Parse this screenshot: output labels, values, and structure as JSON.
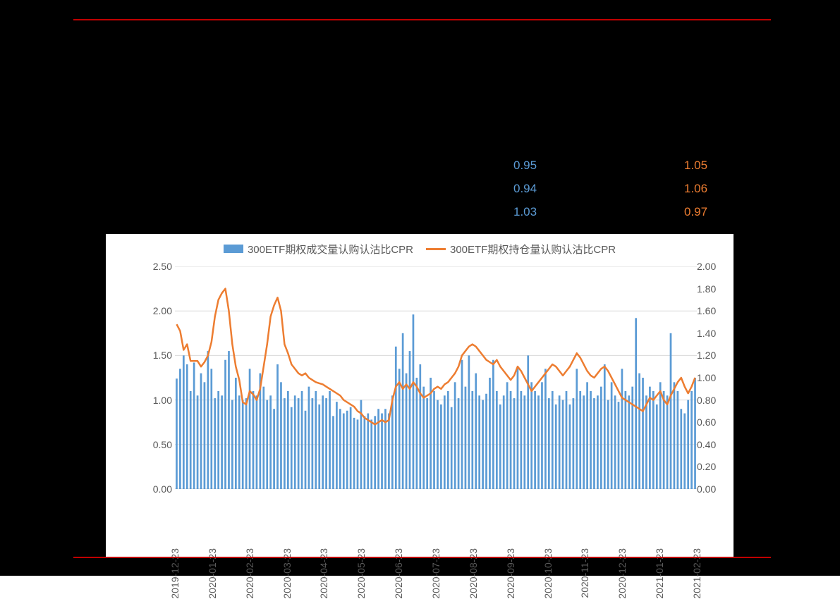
{
  "background_color": "#000000",
  "accent_rule_color": "#c00000",
  "data_rows": [
    {
      "cpr": "0.95",
      "pcr": "1.05",
      "cpr_color": "#5b9bd5",
      "pcr_color": "#ed7d31"
    },
    {
      "cpr": "0.94",
      "pcr": "1.06",
      "cpr_color": "#5b9bd5",
      "pcr_color": "#ed7d31"
    },
    {
      "cpr": "1.03",
      "pcr": "0.97",
      "cpr_color": "#5b9bd5",
      "pcr_color": "#ed7d31"
    }
  ],
  "chart": {
    "type": "bar+line",
    "background_color": "#ffffff",
    "plot_border_color": "#d9d9d9",
    "gridline_color": "#d9d9d9",
    "text_color": "#595959",
    "axis_color": "#bfbfbf",
    "font_size_legend": 15,
    "font_size_axis": 14,
    "legend": [
      {
        "label": "300ETF期权成交量认购认沽比CPR",
        "swatch": "bar",
        "color": "#5b9bd5"
      },
      {
        "label": "300ETF期权持仓量认购认沽比CPR",
        "swatch": "line",
        "color": "#ed7d31"
      }
    ],
    "x_ticks": [
      "2019-12-23",
      "2020-01-23",
      "2020-02-23",
      "2020-03-23",
      "2020-04-23",
      "2020-05-23",
      "2020-06-23",
      "2020-07-23",
      "2020-08-23",
      "2020-09-23",
      "2020-10-23",
      "2020-11-23",
      "2020-12-23",
      "2021-01-23",
      "2021-02-23"
    ],
    "left_axis": {
      "min": 0.0,
      "max": 2.5,
      "step": 0.5,
      "decimals": 2
    },
    "right_axis": {
      "min": 0.0,
      "max": 2.0,
      "step": 0.2,
      "decimals": 2
    },
    "bar": {
      "color": "#5b9bd5",
      "width_ratio": 0.55,
      "values": [
        1.24,
        1.35,
        1.5,
        1.4,
        1.1,
        1.42,
        1.05,
        1.3,
        1.2,
        1.55,
        1.35,
        1.02,
        1.1,
        1.05,
        1.45,
        1.55,
        1.0,
        1.25,
        1.05,
        1.0,
        1.02,
        1.35,
        1.1,
        1.05,
        1.3,
        1.15,
        1.0,
        1.05,
        0.9,
        1.4,
        1.2,
        1.02,
        1.1,
        0.92,
        1.05,
        1.02,
        1.1,
        0.88,
        1.15,
        1.02,
        1.1,
        0.95,
        1.05,
        1.02,
        1.1,
        0.82,
        0.98,
        0.9,
        0.85,
        0.88,
        0.92,
        0.8,
        0.78,
        1.0,
        0.82,
        0.85,
        0.78,
        0.82,
        0.9,
        0.85,
        0.9,
        0.85,
        1.05,
        1.6,
        1.35,
        1.75,
        1.3,
        1.55,
        1.96,
        1.25,
        1.4,
        1.15,
        1.02,
        1.25,
        1.1,
        1.0,
        0.95,
        1.05,
        1.1,
        0.92,
        1.2,
        1.02,
        1.45,
        1.15,
        1.5,
        1.1,
        1.3,
        1.05,
        1.0,
        1.07,
        1.25,
        1.45,
        1.1,
        0.95,
        1.05,
        1.2,
        1.1,
        1.02,
        1.35,
        1.1,
        1.05,
        1.5,
        1.2,
        1.1,
        1.05,
        1.2,
        1.35,
        1.02,
        1.1,
        0.95,
        1.05,
        1.0,
        1.1,
        0.95,
        1.02,
        1.35,
        1.1,
        1.05,
        1.2,
        1.1,
        1.02,
        1.05,
        1.15,
        1.4,
        1.0,
        1.2,
        1.05,
        0.98,
        1.35,
        1.1,
        1.05,
        1.15,
        1.92,
        1.3,
        1.25,
        1.05,
        1.15,
        1.1,
        0.95,
        1.2,
        1.1,
        1.05,
        1.75,
        1.2,
        1.1,
        0.9,
        0.85,
        1.0,
        1.1,
        1.25
      ]
    },
    "line": {
      "color": "#ed7d31",
      "width": 2.5,
      "values": [
        1.48,
        1.42,
        1.25,
        1.3,
        1.15,
        1.15,
        1.15,
        1.1,
        1.14,
        1.2,
        1.32,
        1.55,
        1.7,
        1.76,
        1.8,
        1.6,
        1.3,
        1.1,
        0.98,
        0.78,
        0.76,
        0.88,
        0.85,
        0.8,
        0.9,
        1.1,
        1.3,
        1.55,
        1.65,
        1.72,
        1.6,
        1.3,
        1.22,
        1.12,
        1.08,
        1.04,
        1.02,
        1.04,
        1.0,
        0.98,
        0.96,
        0.95,
        0.94,
        0.92,
        0.9,
        0.88,
        0.86,
        0.84,
        0.8,
        0.78,
        0.76,
        0.74,
        0.7,
        0.68,
        0.64,
        0.62,
        0.6,
        0.58,
        0.6,
        0.62,
        0.6,
        0.62,
        0.8,
        0.92,
        0.96,
        0.9,
        0.94,
        0.9,
        0.96,
        0.92,
        0.86,
        0.82,
        0.84,
        0.86,
        0.9,
        0.92,
        0.9,
        0.94,
        0.96,
        1.0,
        1.04,
        1.1,
        1.2,
        1.24,
        1.28,
        1.3,
        1.28,
        1.24,
        1.2,
        1.16,
        1.14,
        1.12,
        1.16,
        1.1,
        1.06,
        1.02,
        0.98,
        1.02,
        1.1,
        1.06,
        1.0,
        0.94,
        0.88,
        0.92,
        0.96,
        1.0,
        1.04,
        1.08,
        1.12,
        1.1,
        1.06,
        1.02,
        1.06,
        1.1,
        1.16,
        1.22,
        1.18,
        1.12,
        1.06,
        1.02,
        1.0,
        1.04,
        1.08,
        1.1,
        1.06,
        1.0,
        0.94,
        0.88,
        0.82,
        0.8,
        0.78,
        0.76,
        0.74,
        0.72,
        0.7,
        0.76,
        0.82,
        0.8,
        0.84,
        0.88,
        0.8,
        0.76,
        0.84,
        0.9,
        0.96,
        1.0,
        0.92,
        0.86,
        0.92,
        1.0
      ]
    }
  }
}
